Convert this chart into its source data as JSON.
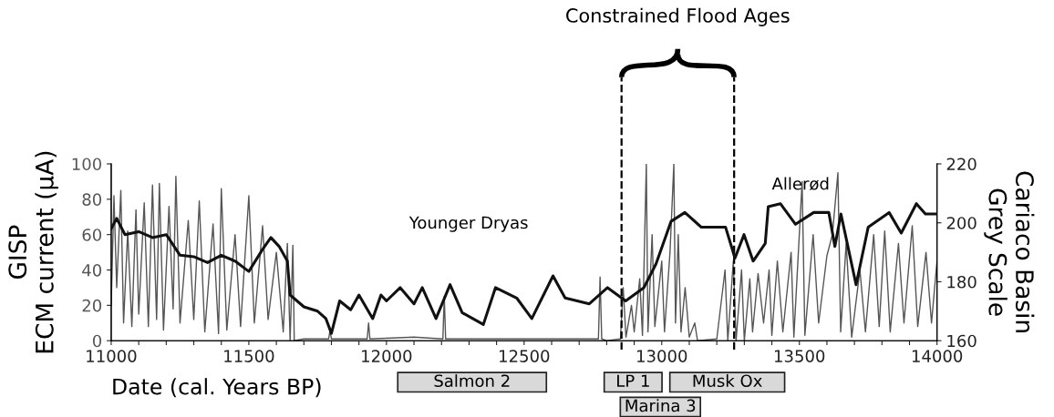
{
  "chart_data": {
    "type": "line",
    "xlabel": "Date (cal. Years BP)",
    "ylabel": "GISP\nECM current (μA)",
    "y2label": "Cariaco Basin\nGrey Scale",
    "xlim": [
      11000,
      14000
    ],
    "xticks": [
      11000,
      {
        "value": 11100,
        "label": null
      },
      {
        "value": 11200,
        "label": null
      },
      {
        "value": 11300,
        "label": null
      },
      {
        "value": 11400,
        "label": null
      },
      11500,
      {
        "value": 11600,
        "label": null
      },
      {
        "value": 11700,
        "label": null
      },
      {
        "value": 11800,
        "label": null
      },
      {
        "value": 11900,
        "label": null
      },
      12000,
      {
        "value": 12100,
        "label": null
      },
      {
        "value": 12200,
        "label": null
      },
      {
        "value": 12300,
        "label": null
      },
      {
        "value": 12400,
        "label": null
      },
      12500,
      {
        "value": 12600,
        "label": null
      },
      {
        "value": 12700,
        "label": null
      },
      {
        "value": 12800,
        "label": null
      },
      {
        "value": 12900,
        "label": null
      },
      13000,
      {
        "value": 13100,
        "label": null
      },
      {
        "value": 13200,
        "label": null
      },
      {
        "value": 13300,
        "label": null
      },
      {
        "value": 13400,
        "label": null
      },
      13500,
      {
        "value": 13600,
        "label": null
      },
      {
        "value": 13700,
        "label": null
      },
      {
        "value": 13800,
        "label": null
      },
      {
        "value": 13900,
        "label": null
      },
      14000
    ],
    "ylim": [
      0,
      100
    ],
    "yticks": [
      0,
      20,
      40,
      60,
      80,
      100
    ],
    "y2lim": [
      160,
      220
    ],
    "y2ticks": [
      160,
      180,
      200,
      220
    ],
    "grid": false,
    "legend": false,
    "marker": "none",
    "line_style": "solid",
    "series": [
      {
        "color": "#555555",
        "x": [
          11000,
          11010,
          11020,
          11035,
          11045,
          11060,
          11075,
          11090,
          11100,
          11120,
          11135,
          11150,
          11165,
          11175,
          11190,
          11210,
          11225,
          11235,
          11250,
          11280,
          11300,
          11320,
          11340,
          11370,
          11390,
          11400,
          11420,
          11450,
          11470,
          11500,
          11520,
          11550,
          11570,
          11600,
          11625,
          11640,
          11650,
          11660,
          11665,
          11700,
          11790,
          11795,
          11800,
          11930,
          11935,
          11940,
          12100,
          12205,
          12210,
          12215,
          12400,
          12770,
          12776,
          12782,
          12800,
          12850,
          12860,
          12870,
          12890,
          12900,
          12920,
          12930,
          12944,
          12950,
          12965,
          12975,
          12990,
          13000,
          13010,
          13030,
          13044,
          13050,
          13060,
          13070,
          13085,
          13100,
          13120,
          13130,
          13200,
          13230,
          13240,
          13260,
          13270,
          13290,
          13300,
          13320,
          13330,
          13350,
          13370,
          13390,
          13400,
          13420,
          13440,
          13470,
          13480,
          13510,
          13520,
          13550,
          13570,
          13600,
          13620,
          13640,
          13650,
          13670,
          13690,
          13720,
          13740,
          13770,
          13790,
          13810,
          13830,
          13860,
          13880,
          13910,
          13930,
          13960,
          13980,
          14000
        ],
        "values": [
          20,
          82,
          30,
          85,
          10,
          62,
          8,
          74,
          15,
          78,
          8,
          88,
          12,
          89,
          6,
          76,
          18,
          93,
          10,
          68,
          12,
          79,
          5,
          66,
          4,
          86,
          6,
          60,
          8,
          82,
          10,
          65,
          12,
          50,
          5,
          55,
          0,
          54,
          0,
          1,
          1,
          6,
          1,
          1,
          10,
          1,
          2,
          1,
          25,
          1,
          1,
          1,
          36,
          1,
          0,
          1,
          30,
          2,
          20,
          5,
          35,
          3,
          100,
          5,
          60,
          8,
          30,
          45,
          5,
          50,
          100,
          10,
          60,
          5,
          30,
          2,
          10,
          0,
          1,
          40,
          0,
          45,
          0,
          40,
          0,
          35,
          5,
          38,
          10,
          40,
          3,
          45,
          5,
          50,
          2,
          90,
          3,
          60,
          10,
          48,
          60,
          95,
          5,
          55,
          2,
          40,
          5,
          60,
          8,
          62,
          5,
          55,
          10,
          65,
          8,
          50,
          10,
          45
        ]
      },
      {
        "color": "#111111",
        "axis": "y2",
        "x": [
          11000,
          11020,
          11050,
          11100,
          11150,
          11200,
          11250,
          11300,
          11350,
          11400,
          11450,
          11500,
          11550,
          11580,
          11610,
          11640,
          11650,
          11700,
          11750,
          11780,
          11800,
          11830,
          11870,
          11900,
          11950,
          11980,
          12000,
          12050,
          12100,
          12130,
          12180,
          12231,
          12275,
          12352,
          12396,
          12473,
          12528,
          12605,
          12649,
          12737,
          12803,
          12869,
          12935,
          12979,
          13034,
          13084,
          13144,
          13232,
          13266,
          13299,
          13332,
          13376,
          13387,
          13431,
          13486,
          13552,
          13607,
          13629,
          13651,
          13706,
          13750,
          13826,
          13870,
          13925,
          13958,
          13997
        ],
        "values": [
          198,
          201.5,
          196,
          197,
          195,
          196,
          189,
          188.5,
          186.5,
          189,
          187,
          183.5,
          191,
          195,
          192,
          187,
          175.5,
          171.5,
          170,
          167.5,
          162.5,
          173.5,
          170.5,
          175.5,
          167.5,
          175.5,
          173.5,
          178,
          172.5,
          178,
          167.5,
          179,
          169.5,
          165.5,
          178,
          174.5,
          167.5,
          182,
          174.5,
          172.5,
          178,
          173.5,
          178,
          186,
          200.5,
          203.5,
          198.5,
          198.5,
          188,
          196,
          187,
          193,
          205.5,
          206.5,
          199.5,
          203.5,
          203.5,
          192,
          203,
          179,
          198.5,
          203.5,
          196.5,
          206.5,
          203,
          203
        ]
      }
    ],
    "annotations": [
      "Younger Dryas",
      "Allerød",
      "Constrained Flood Ages",
      "Salmon 2",
      "LP 1",
      "Musk Ox",
      "Marina 3"
    ],
    "ref_lines": [
      {
        "axis": "x",
        "value": 12854,
        "line_style": "dashed",
        "color": "#000000"
      },
      {
        "axis": "x",
        "value": 13263,
        "line_style": "dashed",
        "color": "#000000"
      }
    ]
  }
}
